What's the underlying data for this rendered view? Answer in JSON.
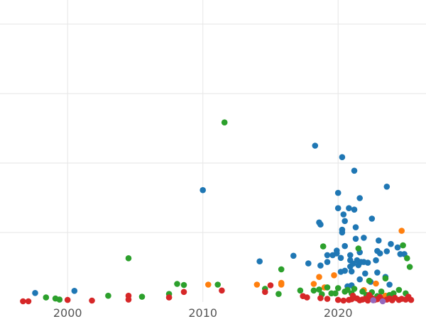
{
  "chart_data": {
    "type": "scatter",
    "title": "",
    "xlabel": "",
    "ylabel": "",
    "xlim": [
      1995,
      2026.5
    ],
    "ylim": [
      0,
      100
    ],
    "x_ticks": [
      2000,
      2010,
      2020
    ],
    "x_tick_labels": [
      "2000",
      "2010",
      "2020"
    ],
    "y_gridlines": [
      20,
      40,
      60,
      80
    ],
    "y_tick_labels_visible": false,
    "grid": true,
    "legend": "none",
    "series": [
      {
        "color": "#1f77b4",
        "points": [
          [
            1997.6,
            2.6
          ],
          [
            2000.5,
            3.2
          ],
          [
            2010.0,
            32.2
          ],
          [
            2014.2,
            11.7
          ],
          [
            2016.7,
            13.3
          ],
          [
            2017.8,
            11.1
          ],
          [
            2018.3,
            45.0
          ],
          [
            2018.6,
            22.9
          ],
          [
            2018.7,
            22.3
          ],
          [
            2018.7,
            10.5
          ],
          [
            2019.2,
            13.5
          ],
          [
            2019.2,
            11.5
          ],
          [
            2019.6,
            13.5
          ],
          [
            2019.9,
            14.8
          ],
          [
            2019.9,
            14.0
          ],
          [
            2020.0,
            31.4
          ],
          [
            2020.0,
            27.0
          ],
          [
            2020.2,
            12.7
          ],
          [
            2020.2,
            8.7
          ],
          [
            2020.3,
            41.7
          ],
          [
            2020.3,
            20.8
          ],
          [
            2020.3,
            20.0
          ],
          [
            2020.4,
            25.2
          ],
          [
            2020.5,
            23.3
          ],
          [
            2020.5,
            16.1
          ],
          [
            2020.5,
            9.0
          ],
          [
            2020.8,
            27.0
          ],
          [
            2020.9,
            13.5
          ],
          [
            2020.9,
            12.0
          ],
          [
            2020.9,
            10.2
          ],
          [
            2021.0,
            8.8
          ],
          [
            2021.1,
            11.0
          ],
          [
            2021.2,
            26.6
          ],
          [
            2021.2,
            37.8
          ],
          [
            2021.3,
            21.5
          ],
          [
            2021.3,
            18.2
          ],
          [
            2021.4,
            12.0
          ],
          [
            2021.5,
            10.6
          ],
          [
            2021.6,
            29.9
          ],
          [
            2021.6,
            14.3
          ],
          [
            2021.7,
            11.5
          ],
          [
            2021.9,
            18.5
          ],
          [
            2021.9,
            11.5
          ],
          [
            2022.0,
            8.2
          ],
          [
            2022.2,
            11.3
          ],
          [
            2022.5,
            24.0
          ],
          [
            2022.8,
            12.0
          ],
          [
            2022.9,
            14.7
          ],
          [
            2022.9,
            8.5
          ],
          [
            2023.0,
            17.7
          ],
          [
            2023.1,
            14.0
          ],
          [
            2023.5,
            7.2
          ],
          [
            2023.6,
            33.2
          ],
          [
            2023.6,
            14.6
          ],
          [
            2023.8,
            5.0
          ],
          [
            2023.9,
            16.7
          ],
          [
            2024.4,
            15.7
          ],
          [
            2024.6,
            13.8
          ],
          [
            2024.9,
            13.8
          ],
          [
            2021.0,
            4.8
          ],
          [
            2020.7,
            4.5
          ],
          [
            2022.4,
            5.8
          ],
          [
            2021.6,
            6.5
          ]
        ]
      },
      {
        "color": "#ff7f0e",
        "points": [
          [
            2010.4,
            5.0
          ],
          [
            2014.0,
            5.0
          ],
          [
            2015.8,
            5.0
          ],
          [
            2015.8,
            5.5
          ],
          [
            2018.2,
            5.2
          ],
          [
            2018.6,
            7.2
          ],
          [
            2019.0,
            4.2
          ],
          [
            2019.7,
            7.7
          ],
          [
            2023.5,
            1.8
          ],
          [
            2024.7,
            20.5
          ],
          [
            2022.8,
            5.3
          ],
          [
            2021.9,
            3.4
          ]
        ]
      },
      {
        "color": "#2ca02c",
        "points": [
          [
            1998.4,
            1.3
          ],
          [
            1999.1,
            1.0
          ],
          [
            1999.4,
            0.7
          ],
          [
            2003.0,
            1.8
          ],
          [
            2004.5,
            12.6
          ],
          [
            2005.5,
            1.5
          ],
          [
            2007.5,
            2.3
          ],
          [
            2008.1,
            5.2
          ],
          [
            2008.6,
            4.9
          ],
          [
            2011.1,
            5.0
          ],
          [
            2011.6,
            51.7
          ],
          [
            2014.6,
            3.8
          ],
          [
            2015.6,
            2.3
          ],
          [
            2015.8,
            9.4
          ],
          [
            2017.2,
            3.3
          ],
          [
            2018.2,
            3.3
          ],
          [
            2018.6,
            3.6
          ],
          [
            2018.8,
            2.2
          ],
          [
            2018.9,
            16.0
          ],
          [
            2019.2,
            4.2
          ],
          [
            2019.5,
            2.5
          ],
          [
            2019.8,
            2.5
          ],
          [
            2020.0,
            4.0
          ],
          [
            2020.5,
            3.0
          ],
          [
            2020.7,
            3.5
          ],
          [
            2021.0,
            2.5
          ],
          [
            2021.2,
            3.8
          ],
          [
            2021.5,
            15.4
          ],
          [
            2021.8,
            3.0
          ],
          [
            2022.1,
            2.0
          ],
          [
            2022.3,
            6.1
          ],
          [
            2022.5,
            2.8
          ],
          [
            2022.9,
            1.7
          ],
          [
            2023.2,
            3.0
          ],
          [
            2023.5,
            6.8
          ],
          [
            2023.8,
            2.0
          ],
          [
            2024.1,
            2.5
          ],
          [
            2024.5,
            3.5
          ],
          [
            2024.8,
            16.3
          ],
          [
            2025.1,
            12.6
          ],
          [
            2025.3,
            10.1
          ],
          [
            2025.0,
            2.5
          ]
        ]
      },
      {
        "color": "#d62728",
        "points": [
          [
            1996.7,
            0.2
          ],
          [
            1997.1,
            0.2
          ],
          [
            2000.0,
            0.6
          ],
          [
            2001.8,
            0.4
          ],
          [
            2004.5,
            1.8
          ],
          [
            2004.5,
            0.7
          ],
          [
            2007.5,
            1.3
          ],
          [
            2008.6,
            2.9
          ],
          [
            2011.4,
            3.3
          ],
          [
            2014.6,
            2.9
          ],
          [
            2015.0,
            4.8
          ],
          [
            2017.4,
            1.7
          ],
          [
            2017.7,
            1.3
          ],
          [
            2018.7,
            1.1
          ],
          [
            2019.2,
            0.9
          ],
          [
            2020.0,
            0.6
          ],
          [
            2020.4,
            0.4
          ],
          [
            2020.8,
            0.6
          ],
          [
            2021.0,
            0.8
          ],
          [
            2021.2,
            1.2
          ],
          [
            2021.4,
            1.0
          ],
          [
            2021.6,
            0.5
          ],
          [
            2021.8,
            0.7
          ],
          [
            2022.0,
            0.9
          ],
          [
            2022.2,
            0.4
          ],
          [
            2022.5,
            1.1
          ],
          [
            2022.7,
            0.6
          ],
          [
            2022.9,
            0.8
          ],
          [
            2023.1,
            1.4
          ],
          [
            2023.3,
            0.5
          ],
          [
            2023.6,
            0.7
          ],
          [
            2023.8,
            1.0
          ],
          [
            2024.0,
            0.5
          ],
          [
            2024.2,
            1.2
          ],
          [
            2024.5,
            0.6
          ],
          [
            2024.7,
            0.9
          ],
          [
            2025.0,
            0.7
          ],
          [
            2025.2,
            1.5
          ],
          [
            2025.4,
            0.6
          ],
          [
            2021.1,
            1.8
          ],
          [
            2022.3,
            2.0
          ]
        ]
      },
      {
        "color": "#9467bd",
        "points": [
          [
            2022.6,
            0.5
          ],
          [
            2023.3,
            0.2
          ]
        ]
      }
    ]
  }
}
